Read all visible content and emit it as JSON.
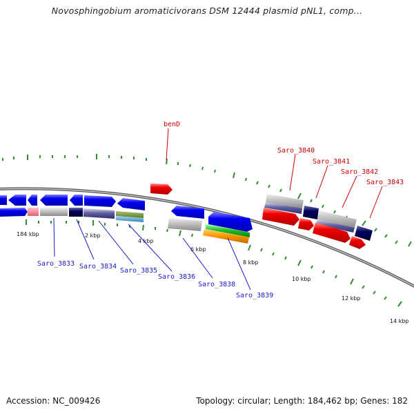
{
  "title": "Novosphingobium aromaticivorans DSM 12444 plasmid pNL1, comp...",
  "footer": {
    "accession": "Accession: NC_009426",
    "summary": "Topology: circular; Length: 184,462 bp; Genes: 182"
  },
  "scale_labels": [
    "184 kbp",
    "2 kbp",
    "4 kbp",
    "6 kbp",
    "8 kbp",
    "10 kbp",
    "12 kbp",
    "14 kbp"
  ],
  "gene_labels_top": [
    "benD",
    "Saro_3840",
    "Saro_3841",
    "Saro_3842",
    "Saro_3843"
  ],
  "gene_labels_bottom": [
    "Saro_3833",
    "Saro_3834",
    "Saro_3835",
    "Saro_3836",
    "Saro_3838",
    "Saro_3839"
  ],
  "colors": {
    "forward_strand": "#0000ee",
    "reverse_strand": "#ee0000",
    "backbone": "#888888",
    "ticks": "#2e8b2e",
    "label_red": "#cc0000",
    "label_blue": "#1a1ac8"
  }
}
